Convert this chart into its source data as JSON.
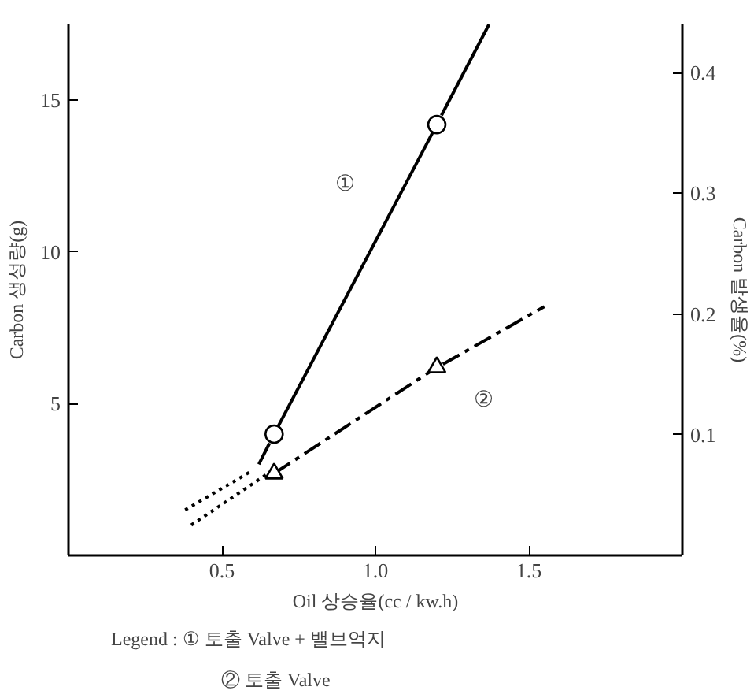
{
  "chart_data": {
    "type": "line",
    "xlabel": "Oil 상승율(cc / kw.h)",
    "ylabel": "Carbon 생성량(g)",
    "y2label": "Carbon 발생율(%)",
    "xlim": [
      0,
      2.0
    ],
    "ylim": [
      0,
      17.5
    ],
    "y2lim": [
      0,
      0.44
    ],
    "xticks": [
      {
        "value": 0.5,
        "label": "0.5"
      },
      {
        "value": 1.0,
        "label": "1.0"
      },
      {
        "value": 1.5,
        "label": "1.5"
      }
    ],
    "yticks": [
      5,
      10,
      15
    ],
    "y2ticks": [
      0.1,
      0.2,
      0.3,
      0.4
    ],
    "grid": false,
    "series": [
      {
        "color": "#000000",
        "line_style": "solid",
        "marker": "none",
        "x": [
          0.62,
          0.655
        ],
        "values": [
          3.0,
          3.7
        ]
      },
      {
        "color": "#000000",
        "line_style": "solid",
        "marker": "circle",
        "x": [
          0.67,
          1.2
        ],
        "values": [
          4.0,
          14.2
        ]
      },
      {
        "color": "#000000",
        "line_style": "solid",
        "marker": "none",
        "x": [
          1.215,
          1.37
        ],
        "values": [
          14.5,
          17.5
        ]
      },
      {
        "color": "#000000",
        "line_style": "dotted",
        "marker": "none",
        "x": [
          0.38,
          0.6
        ],
        "values": [
          1.5,
          2.8
        ]
      },
      {
        "color": "#000000",
        "line_style": "dashdot",
        "marker": "triangle",
        "x": [
          0.67,
          1.2
        ],
        "values": [
          2.7,
          6.2
        ]
      },
      {
        "color": "#000000",
        "line_style": "dashdot",
        "marker": "none",
        "x": [
          1.22,
          1.55
        ],
        "values": [
          6.3,
          8.2
        ]
      },
      {
        "color": "#000000",
        "line_style": "dotted",
        "marker": "none",
        "x": [
          0.4,
          0.65
        ],
        "values": [
          1.0,
          2.7
        ]
      }
    ],
    "annotations": [
      "①",
      "②",
      "Legend : ① 토출 Valve + 밸브억지",
      "② 토출 Valve"
    ]
  }
}
